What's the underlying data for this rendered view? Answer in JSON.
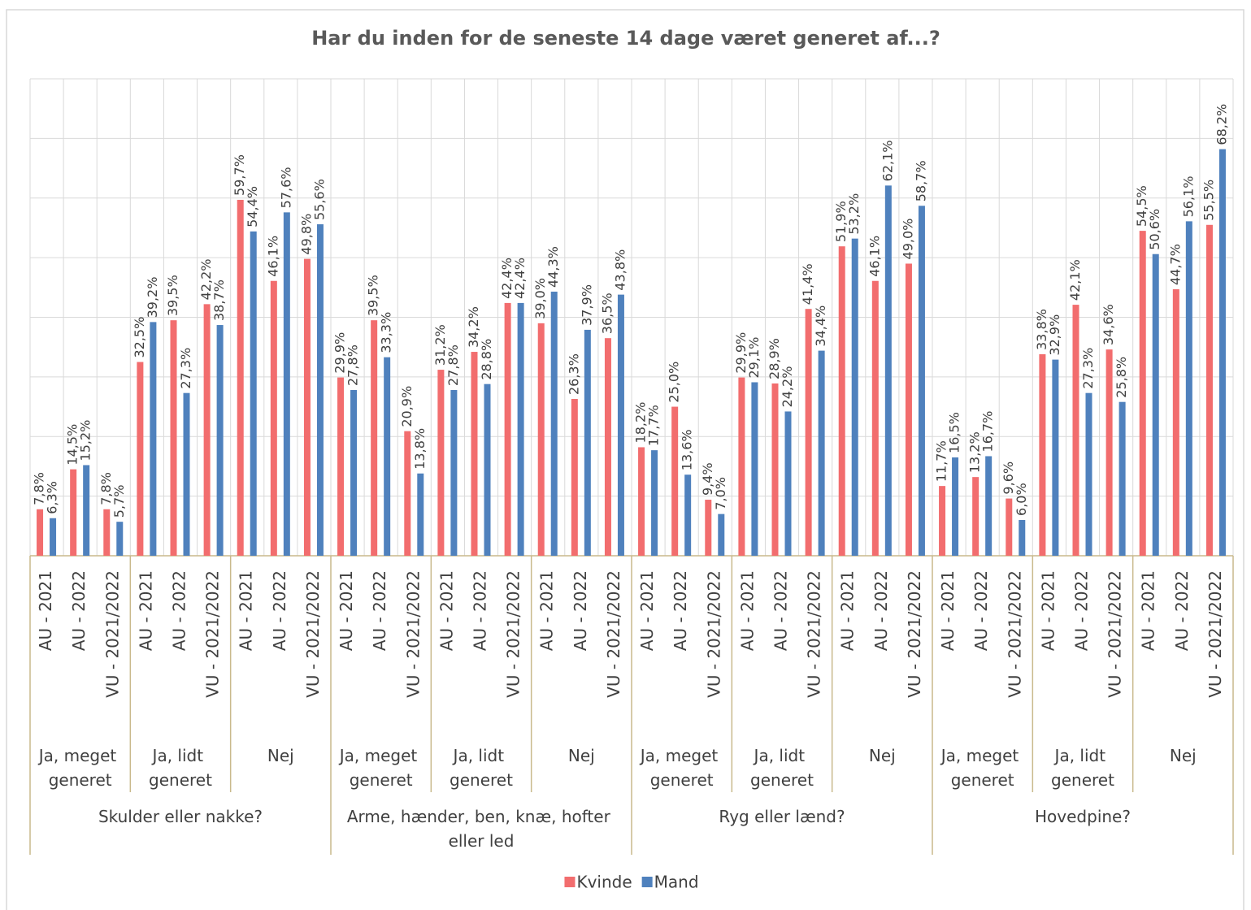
{
  "chart_data": {
    "type": "bar",
    "title": "Har du inden for de seneste 14 dage været generet af...?",
    "groups": [
      "Skulder eller nakke?",
      "Arme, hænder, ben, knæ, hofter eller led",
      "Ryg eller lænd?",
      "Hovedpine?"
    ],
    "subgroups": [
      "Ja, meget generet",
      "Ja, lidt generet",
      "Nej",
      "Ja, meget generet",
      "Ja, lidt generet",
      "Nej",
      "Ja, meget generet",
      "Ja, lidt generet",
      "Nej",
      "Ja, meget generet",
      "Ja, lidt generet",
      "Nej"
    ],
    "categories": [
      "AU - 2021",
      "AU - 2022",
      "VU - 2021/2022",
      "AU - 2021",
      "AU - 2022",
      "VU - 2021/2022",
      "AU - 2021",
      "AU - 2022",
      "VU - 2021/2022",
      "AU - 2021",
      "AU - 2022",
      "VU - 2021/2022",
      "AU - 2021",
      "AU - 2022",
      "VU - 2021/2022",
      "AU - 2021",
      "AU - 2022",
      "VU - 2021/2022",
      "AU - 2021",
      "AU - 2022",
      "VU - 2021/2022",
      "AU - 2021",
      "AU - 2022",
      "VU - 2021/2022",
      "AU - 2021",
      "AU - 2022",
      "VU - 2021/2022",
      "AU - 2021",
      "AU - 2022",
      "VU - 2021/2022",
      "AU - 2021",
      "AU - 2022",
      "VU - 2021/2022",
      "AU - 2021",
      "AU - 2022",
      "VU - 2021/2022"
    ],
    "series": [
      {
        "name": "Kvinde",
        "color": "#f26d6e",
        "values": [
          7.8,
          14.5,
          7.8,
          32.5,
          39.5,
          42.2,
          59.7,
          46.1,
          49.8,
          29.9,
          39.5,
          20.9,
          31.2,
          34.2,
          42.4,
          39.0,
          26.3,
          36.5,
          18.2,
          25.0,
          9.4,
          29.9,
          28.9,
          41.4,
          51.9,
          46.1,
          49.0,
          11.7,
          13.2,
          9.6,
          33.8,
          42.1,
          34.6,
          54.5,
          44.7,
          55.5
        ],
        "value_labels": [
          "7,8%",
          "14,5%",
          "7,8%",
          "32,5%",
          "39,5%",
          "42,2%",
          "59,7%",
          "46,1%",
          "49,8%",
          "29,9%",
          "39,5%",
          "20,9%",
          "31,2%",
          "34,2%",
          "42,4%",
          "39,0%",
          "26,3%",
          "36,5%",
          "18,2%",
          "25,0%",
          "9,4%",
          "29,9%",
          "28,9%",
          "41,4%",
          "51,9%",
          "46,1%",
          "49,0%",
          "11,7%",
          "13,2%",
          "9,6%",
          "33,8%",
          "42,1%",
          "34,6%",
          "54,5%",
          "44,7%",
          "55,5%"
        ]
      },
      {
        "name": "Mand",
        "color": "#4f81bd",
        "values": [
          6.3,
          15.2,
          5.7,
          39.2,
          27.3,
          38.7,
          54.4,
          57.6,
          55.6,
          27.8,
          33.3,
          13.8,
          27.8,
          28.8,
          42.4,
          44.3,
          37.9,
          43.8,
          17.7,
          13.6,
          7.0,
          29.1,
          24.2,
          34.4,
          53.2,
          62.1,
          58.7,
          16.5,
          16.7,
          6.0,
          32.9,
          27.3,
          25.8,
          50.6,
          56.1,
          68.2
        ],
        "value_labels": [
          "6,3%",
          "15,2%",
          "5,7%",
          "39,2%",
          "27,3%",
          "38,7%",
          "54,4%",
          "57,6%",
          "55,6%",
          "27,8%",
          "33,3%",
          "13,8%",
          "27,8%",
          "28,8%",
          "42,4%",
          "44,3%",
          "37,9%",
          "43,8%",
          "17,7%",
          "13,6%",
          "7,0%",
          "29,1%",
          "24,2%",
          "34,4%",
          "53,2%",
          "62,1%",
          "58,7%",
          "16,5%",
          "16,7%",
          "6,0%",
          "32,9%",
          "27,3%",
          "25,8%",
          "50,6%",
          "56,1%",
          "68,2%"
        ]
      }
    ],
    "ylim": [
      0,
      80
    ],
    "yticks": [
      0,
      10,
      20,
      30,
      40,
      50,
      60,
      70,
      80
    ],
    "grid": true,
    "legend": "bottom"
  }
}
